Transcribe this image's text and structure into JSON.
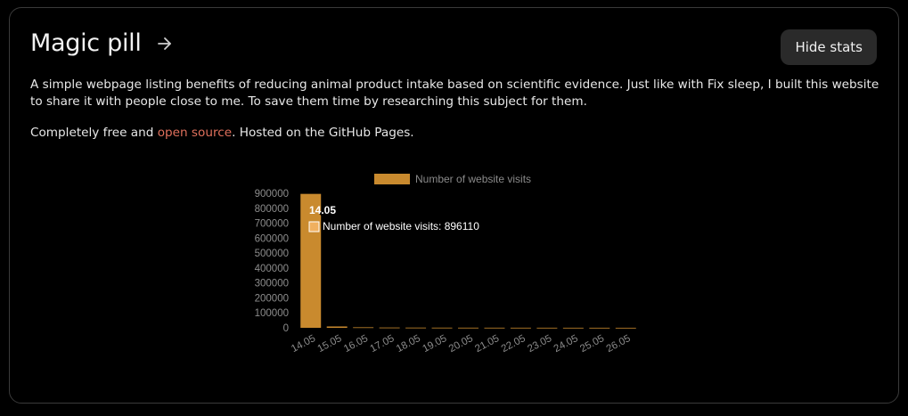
{
  "project": {
    "title": "Magic pill",
    "arrow_icon": "arrow-right-icon",
    "hide_stats_label": "Hide stats",
    "description": "A simple webpage listing benefits of reducing animal product intake based on scientific evidence. Just like with Fix sleep, I built this website to share it with people close to me. To save them time by researching this subject for them.",
    "free_prefix": "Completely free and ",
    "open_source_label": "open source",
    "free_suffix": ". Hosted on the GitHub Pages."
  },
  "colors": {
    "bar": "#c98a2e",
    "accent_link": "#e0705c",
    "tooltip_bg": "#000000"
  },
  "chart_data": {
    "type": "bar",
    "categories": [
      "14.05",
      "15.05",
      "16.05",
      "17.05",
      "18.05",
      "19.05",
      "20.05",
      "21.05",
      "22.05",
      "23.05",
      "24.05",
      "25.05",
      "26.05"
    ],
    "series": [
      {
        "name": "Number of website visits",
        "values": [
          896110,
          9000,
          3500,
          2000,
          1500,
          1200,
          1000,
          900,
          800,
          700,
          600,
          500,
          400
        ]
      }
    ],
    "ylim": [
      0,
      900000
    ],
    "yticks": [
      "900000",
      "800000",
      "700000",
      "600000",
      "500000",
      "400000",
      "300000",
      "200000",
      "100000",
      "0"
    ],
    "legend": "top",
    "tooltip": {
      "title": "14.05",
      "label": "Number of website visits: 896110"
    }
  }
}
